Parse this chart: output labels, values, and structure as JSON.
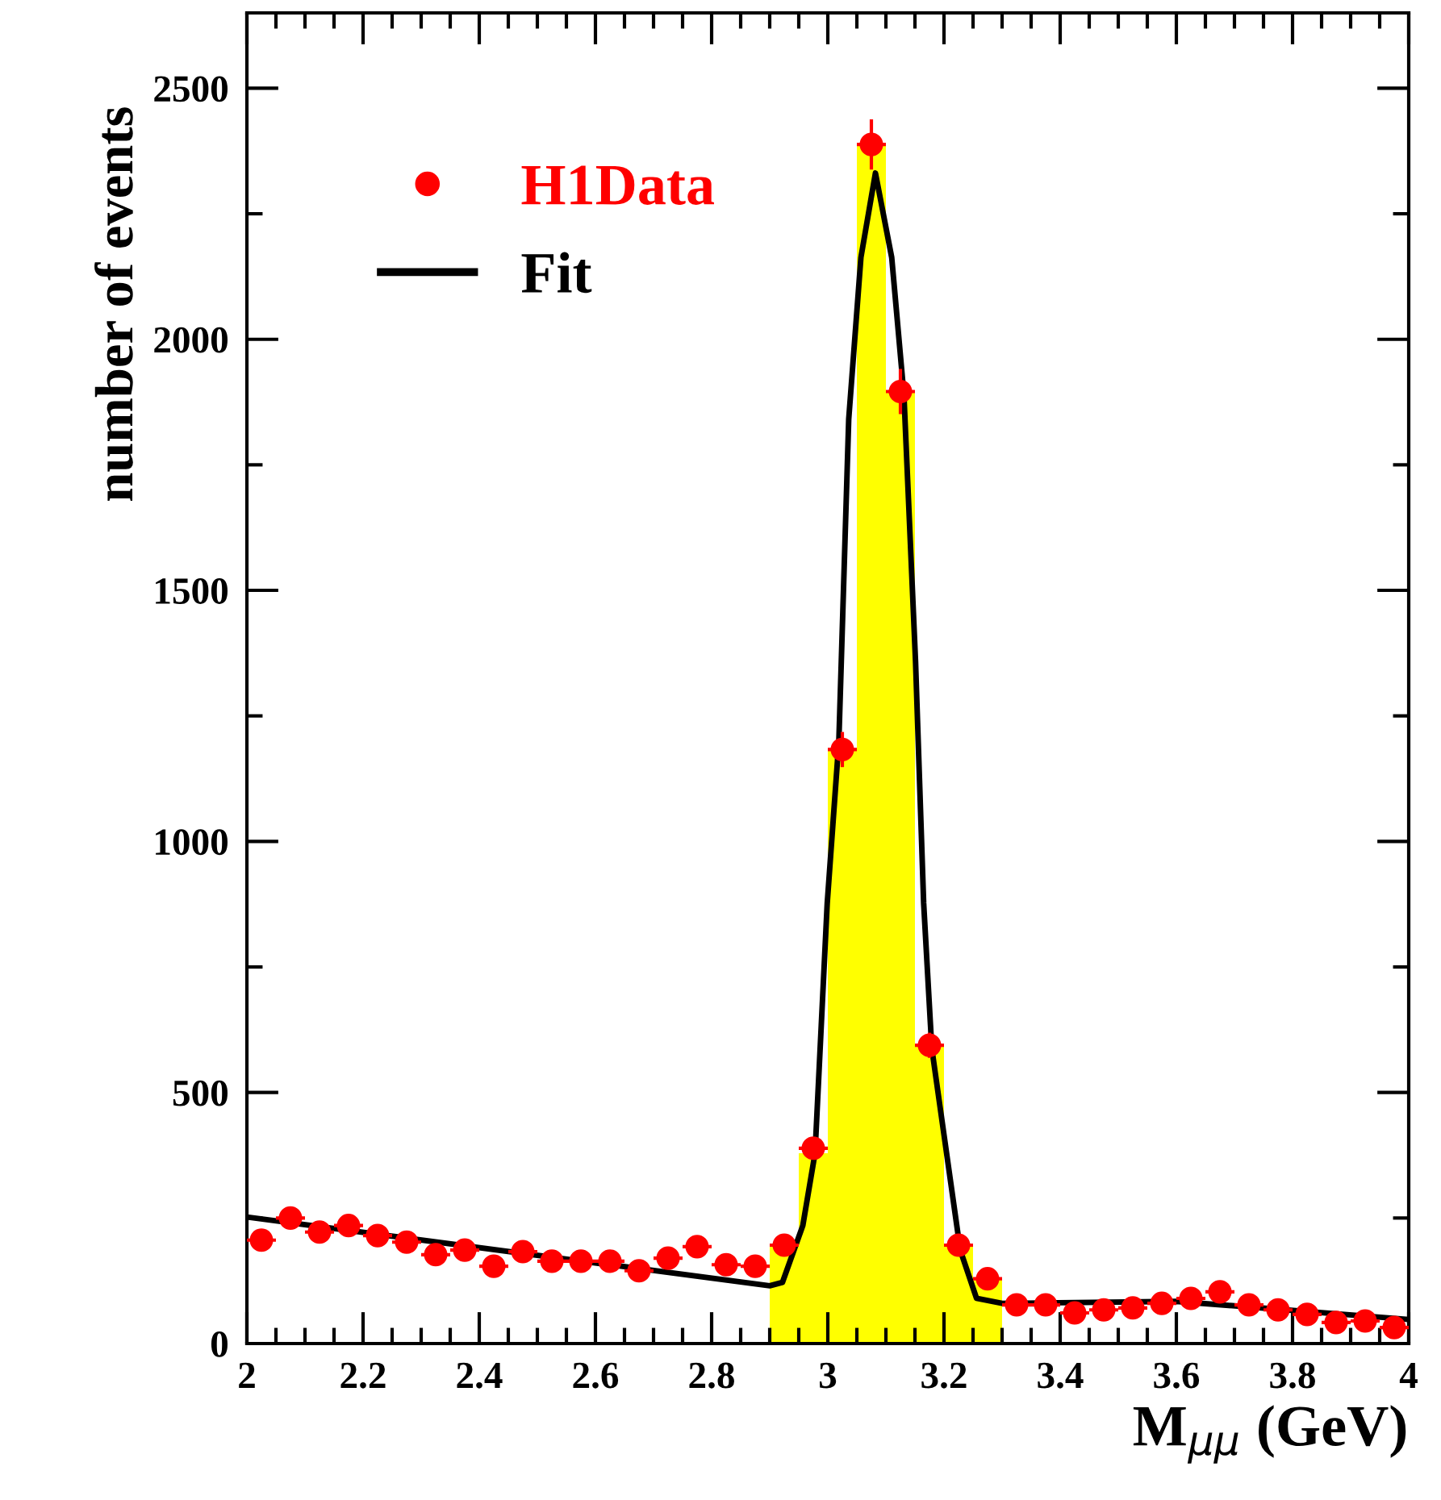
{
  "chart_data": {
    "type": "scatter",
    "xlabel": "M$_{μμ}$ (GeV)",
    "ylabel": "number of events",
    "xlim": [
      2,
      4
    ],
    "ylim": [
      0,
      2650
    ],
    "xticks": [
      2,
      {
        "value": 2.05,
        "label": null
      },
      {
        "value": 2.1,
        "label": null
      },
      {
        "value": 2.15,
        "label": null
      },
      2.2,
      {
        "value": 2.25,
        "label": null
      },
      {
        "value": 2.3,
        "label": null
      },
      {
        "value": 2.35,
        "label": null
      },
      2.4,
      {
        "value": 2.45,
        "label": null
      },
      {
        "value": 2.5,
        "label": null
      },
      {
        "value": 2.55,
        "label": null
      },
      2.6,
      {
        "value": 2.65,
        "label": null
      },
      {
        "value": 2.7,
        "label": null
      },
      {
        "value": 2.75,
        "label": null
      },
      2.8,
      {
        "value": 2.85,
        "label": null
      },
      {
        "value": 2.9,
        "label": null
      },
      {
        "value": 2.95,
        "label": null
      },
      3,
      {
        "value": 3.05,
        "label": null
      },
      {
        "value": 3.1,
        "label": null
      },
      {
        "value": 3.15,
        "label": null
      },
      3.2,
      {
        "value": 3.25,
        "label": null
      },
      {
        "value": 3.3,
        "label": null
      },
      {
        "value": 3.35,
        "label": null
      },
      3.4,
      {
        "value": 3.45,
        "label": null
      },
      {
        "value": 3.5,
        "label": null
      },
      {
        "value": 3.55,
        "label": null
      },
      3.6,
      {
        "value": 3.65,
        "label": null
      },
      {
        "value": 3.7,
        "label": null
      },
      {
        "value": 3.75,
        "label": null
      },
      3.8,
      {
        "value": 3.85,
        "label": null
      },
      {
        "value": 3.9,
        "label": null
      },
      {
        "value": 3.95,
        "label": null
      },
      4
    ],
    "yticks": [
      0,
      {
        "value": 250,
        "label": null
      },
      500,
      {
        "value": 750,
        "label": null
      },
      1000,
      {
        "value": 1250,
        "label": null
      },
      1500,
      {
        "value": 1750,
        "label": null
      },
      2000,
      {
        "value": 2250,
        "label": null
      },
      2500
    ],
    "legend": "top left",
    "grid": false,
    "series": [
      {
        "type": "histogram",
        "color": "#ffff00",
        "bins": [
          2.9,
          2.95,
          3.0,
          3.05,
          3.1,
          3.15,
          3.2,
          3.25,
          3.3
        ],
        "values": [
          193,
          379,
          1183,
          2388,
          1896,
          594,
          196,
          129
        ]
      },
      {
        "name": "Fit",
        "type": "line",
        "color": "#000000",
        "x": [
          2.0,
          2.9,
          2.922,
          2.957,
          2.978,
          2.999,
          3.019,
          3.036,
          3.057,
          3.082,
          3.11,
          3.131,
          3.151,
          3.165,
          3.179,
          3.228,
          3.256,
          3.3,
          3.6,
          4.0
        ],
        "values": [
          252,
          115,
          122,
          235,
          379,
          877,
          1199,
          1841,
          2163,
          2331,
          2163,
          1890,
          1359,
          877,
          588,
          186,
          90,
          80,
          84,
          48
        ]
      },
      {
        "name": "H1Data",
        "color": "#ff0000",
        "marker": "circle",
        "x": [
          2.025,
          2.075,
          2.125,
          2.175,
          2.225,
          2.275,
          2.325,
          2.375,
          2.425,
          2.475,
          2.525,
          2.575,
          2.625,
          2.675,
          2.725,
          2.775,
          2.825,
          2.875,
          2.925,
          2.975,
          3.025,
          3.075,
          3.125,
          3.175,
          3.225,
          3.275,
          3.325,
          3.375,
          3.425,
          3.475,
          3.525,
          3.575,
          3.625,
          3.675,
          3.725,
          3.775,
          3.825,
          3.875,
          3.925,
          3.975
        ],
        "values": [
          206,
          250,
          222,
          235,
          215,
          202,
          177,
          186,
          154,
          183,
          164,
          164,
          164,
          145,
          170,
          193,
          157,
          154,
          196,
          389,
          1183,
          2388,
          1896,
          594,
          196,
          129,
          77,
          77,
          61,
          67,
          71,
          80,
          90,
          103,
          77,
          67,
          58,
          42,
          45,
          32
        ],
        "errors": [
          null,
          null,
          null,
          null,
          null,
          null,
          null,
          null,
          null,
          null,
          null,
          null,
          null,
          null,
          null,
          null,
          null,
          null,
          null,
          null,
          35,
          50,
          45,
          25,
          null,
          null,
          null,
          null,
          null,
          null,
          null,
          null,
          null,
          null,
          null,
          null,
          null,
          null,
          null,
          null
        ],
        "xerrors": [
          0.025,
          0.025,
          0.025,
          0.025,
          0.025,
          0.025,
          0.025,
          0.025,
          0.025,
          0.025,
          0.025,
          0.025,
          0.025,
          0.025,
          0.025,
          0.025,
          0.025,
          0.025,
          0.025,
          0.025,
          0.025,
          0.025,
          0.025,
          0.025,
          0.025,
          0.025,
          0.025,
          0.025,
          0.025,
          0.025,
          0.025,
          0.025,
          0.025,
          0.025,
          0.025,
          0.025,
          0.025,
          0.025,
          0.025,
          0.025
        ]
      }
    ]
  }
}
